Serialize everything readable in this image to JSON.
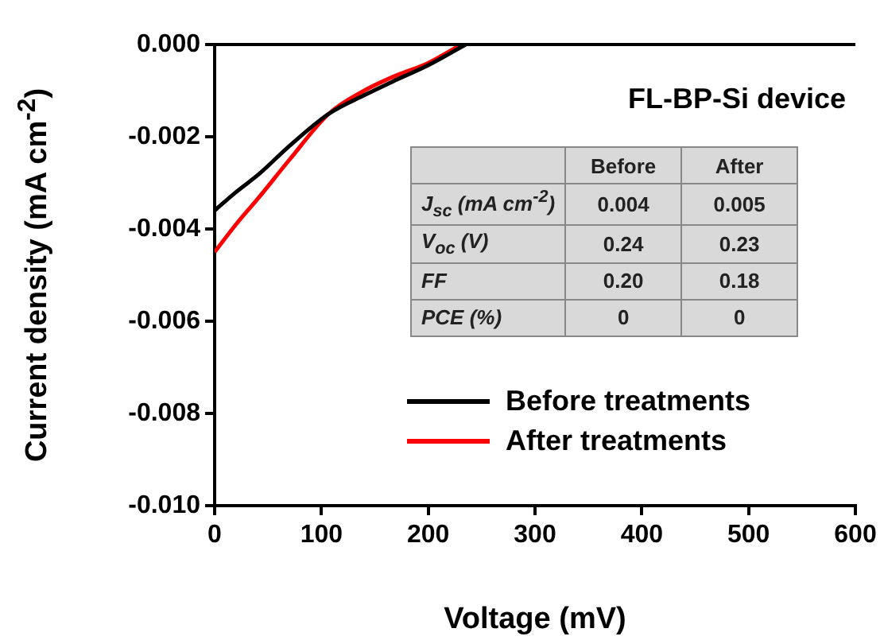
{
  "chart_data": {
    "type": "line",
    "xlabel": "Voltage (mV)",
    "ylabel": "Current density (mA cm$^{-2}$)",
    "xlim": [
      0,
      600
    ],
    "xticks": [
      0,
      100,
      200,
      300,
      400,
      500,
      600
    ],
    "ylim": [
      -0.01,
      0
    ],
    "yticks": [
      {
        "value": -0.01,
        "label": "-0.010"
      },
      -0.008,
      -0.006,
      -0.004,
      -0.002,
      {
        "value": 0,
        "label": "0.000"
      }
    ],
    "series": [
      {
        "name": "Before treatments",
        "color": "#000000",
        "x": [
          0,
          20,
          42,
          70,
          107,
          140,
          167,
          200,
          235
        ],
        "values": [
          -0.0036,
          -0.0032,
          -0.0028,
          -0.0022,
          -0.0015,
          -0.0011,
          -0.0008,
          -0.00045,
          0
        ]
      },
      {
        "name": "After treatments",
        "color": "#ff0000",
        "x": [
          0,
          20,
          42,
          70,
          107,
          140,
          167,
          200,
          231
        ],
        "values": [
          -0.0045,
          -0.0039,
          -0.0033,
          -0.0025,
          -0.0015,
          -0.001,
          -0.0007,
          -0.0004,
          0
        ]
      }
    ],
    "legend": "bottom right",
    "grid": false,
    "marker": "none",
    "line_style": "solid",
    "annotations": [
      "FL-BP-Si device",
      "Before",
      "After",
      "J$_{sc}$ (mA cm$^{-2}$)",
      "0.004",
      "0.005",
      "V$_{oc}$ (V)",
      "0.24",
      "0.23",
      "FF",
      "0.20",
      "0.18",
      "PCE (%)",
      "0",
      "0"
    ]
  }
}
